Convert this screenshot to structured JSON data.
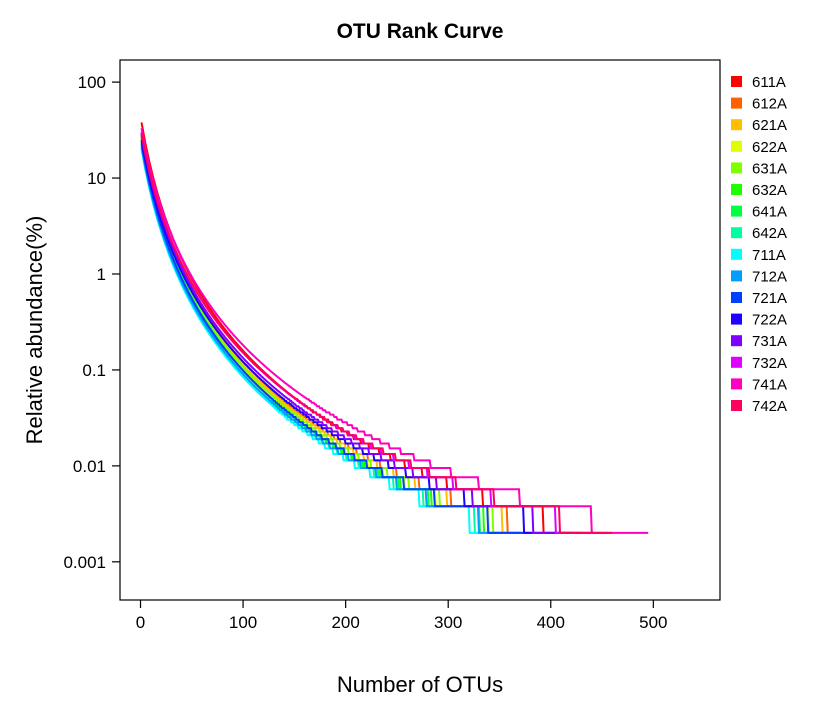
{
  "chart_data": {
    "type": "line",
    "title": "OTU Rank Curve",
    "xlabel": "Number of OTUs",
    "ylabel": "Relative abundance(%)",
    "xlim": [
      -20,
      565
    ],
    "ylim": [
      0.0004,
      170
    ],
    "yscale": "log",
    "xticks": [
      0,
      100,
      200,
      300,
      400,
      500
    ],
    "yticks": [
      100,
      10,
      1,
      0.1,
      0.01,
      0.001
    ],
    "yticklabels": [
      "100",
      "10",
      "1",
      "0.1",
      "0.01",
      "0.001"
    ],
    "grid": false,
    "legend_position": "right",
    "series": [
      {
        "name": "611A",
        "color": "#FF0000",
        "n": 440,
        "y_start": 38,
        "y_tail": 0.002
      },
      {
        "name": "612A",
        "color": "#FF6000",
        "n": 400,
        "y_start": 30,
        "y_tail": 0.002
      },
      {
        "name": "621A",
        "color": "#FFBF00",
        "n": 395,
        "y_start": 28,
        "y_tail": 0.002
      },
      {
        "name": "622A",
        "color": "#DFFF00",
        "n": 380,
        "y_start": 25,
        "y_tail": 0.002
      },
      {
        "name": "631A",
        "color": "#80FF00",
        "n": 385,
        "y_start": 27,
        "y_tail": 0.002
      },
      {
        "name": "632A",
        "color": "#20FF00",
        "n": 375,
        "y_start": 24,
        "y_tail": 0.002
      },
      {
        "name": "641A",
        "color": "#00FF40",
        "n": 370,
        "y_start": 26,
        "y_tail": 0.002
      },
      {
        "name": "642A",
        "color": "#00FF9F",
        "n": 365,
        "y_start": 22,
        "y_tail": 0.002
      },
      {
        "name": "711A",
        "color": "#00FFFF",
        "n": 360,
        "y_start": 20,
        "y_tail": 0.002
      },
      {
        "name": "712A",
        "color": "#009FFF",
        "n": 370,
        "y_start": 21,
        "y_tail": 0.002
      },
      {
        "name": "721A",
        "color": "#0040FF",
        "n": 380,
        "y_start": 23,
        "y_tail": 0.002
      },
      {
        "name": "722A",
        "color": "#2000FF",
        "n": 420,
        "y_start": 25,
        "y_tail": 0.002
      },
      {
        "name": "731A",
        "color": "#8000FF",
        "n": 430,
        "y_start": 28,
        "y_tail": 0.002
      },
      {
        "name": "732A",
        "color": "#DF00FF",
        "n": 455,
        "y_start": 30,
        "y_tail": 0.002
      },
      {
        "name": "741A",
        "color": "#FF00BF",
        "n": 495,
        "y_start": 33,
        "y_tail": 0.002
      },
      {
        "name": "742A",
        "color": "#FF0060",
        "n": 460,
        "y_start": 29,
        "y_tail": 0.002
      }
    ]
  }
}
